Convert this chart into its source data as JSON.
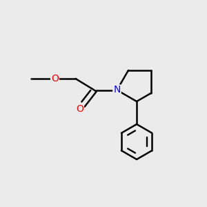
{
  "bg_color": "#ebebeb",
  "bond_color": "#000000",
  "bond_width": 1.8,
  "atom_colors": {
    "O": "#ff0000",
    "N": "#0000ff",
    "C": "#000000"
  },
  "font_size": 10,
  "figsize": [
    3.0,
    3.0
  ],
  "dpi": 100,
  "xlim": [
    0,
    10
  ],
  "ylim": [
    0,
    10
  ]
}
